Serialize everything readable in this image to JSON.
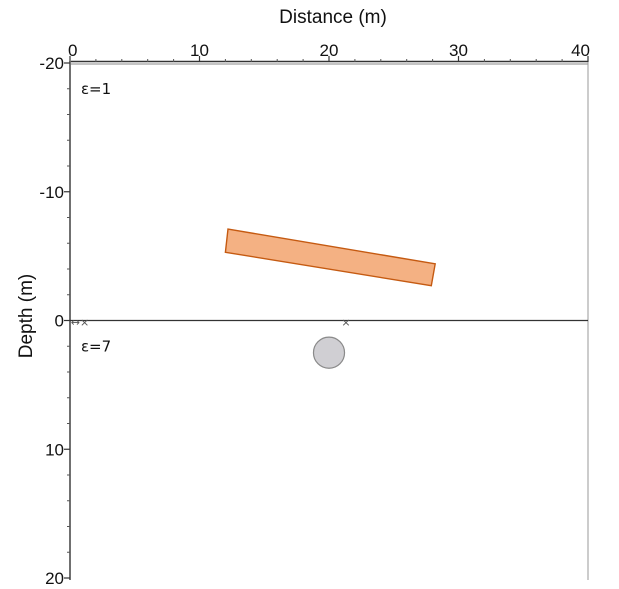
{
  "chart_data": {
    "type": "diagram",
    "xlabel": "Distance (m)",
    "ylabel": "Depth (m)",
    "x_ticks": [
      "0",
      "10",
      "20",
      "30",
      "40"
    ],
    "y_ticks": [
      "-20",
      "-10",
      "0",
      "10",
      "20"
    ],
    "xlim": [
      0,
      40
    ],
    "ylim": [
      -20,
      20
    ],
    "interface_depth": 0,
    "layers": [
      {
        "label": "ε=1",
        "at": [
          1,
          -18
        ]
      },
      {
        "label": "ε=7",
        "at": [
          1,
          2
        ]
      }
    ],
    "objects": [
      {
        "shape": "tilted-rectangle",
        "fill_color": "#f4b183",
        "edge_color": "#c55a11",
        "corners": [
          [
            12.2,
            -7.1
          ],
          [
            28.2,
            -4.4
          ],
          [
            27.9,
            -2.7
          ],
          [
            12.0,
            -5.3
          ]
        ]
      },
      {
        "shape": "circle",
        "fill_color": "#d0cfd3",
        "edge_color": "#8a8a8a",
        "center": [
          20,
          2.5
        ],
        "radius": 1.2
      }
    ],
    "colors": {
      "axis": "#333333",
      "frame": "#999999"
    }
  }
}
